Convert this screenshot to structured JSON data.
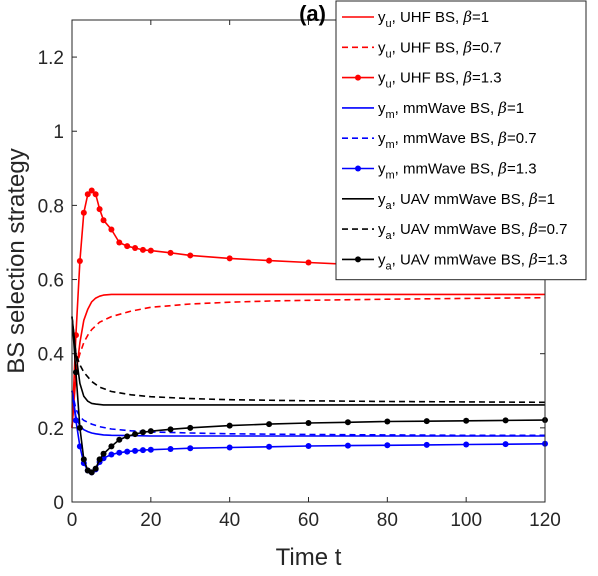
{
  "chart_data": {
    "type": "line",
    "panel_label": "(a)",
    "xlabel": "Time t",
    "ylabel": "BS selection strategy",
    "xlim": [
      0,
      120
    ],
    "ylim": [
      0,
      1.3
    ],
    "xticks": [
      "0",
      "20",
      "40",
      "60",
      "80",
      "100",
      "120"
    ],
    "yticks": [
      "0",
      "0.2",
      "0.4",
      "0.6",
      "0.8",
      "1",
      "1.2"
    ],
    "xtick_values": [
      0,
      20,
      40,
      60,
      80,
      100,
      120
    ],
    "ytick_values": [
      0,
      0.2,
      0.4,
      0.6,
      0.8,
      1.0,
      1.2
    ],
    "legend_position": "top-right",
    "colors": {
      "uhf": "#ff0000",
      "mm": "#0000ff",
      "uav": "#000000"
    },
    "series": [
      {
        "name": "y_u, UHF BS, β=1",
        "legend": {
          "var": "y",
          "sub": "u",
          "desc": ", UHF BS, ",
          "beta": "=1"
        },
        "color": "#ff0000",
        "style": "solid",
        "marker": false,
        "x": [
          0,
          1,
          2,
          3,
          4,
          5,
          6,
          7,
          8,
          10,
          12,
          15,
          20,
          30,
          40,
          60,
          80,
          100,
          120
        ],
        "y": [
          0.2,
          0.34,
          0.43,
          0.49,
          0.52,
          0.54,
          0.55,
          0.555,
          0.558,
          0.56,
          0.56,
          0.56,
          0.56,
          0.56,
          0.56,
          0.56,
          0.56,
          0.56,
          0.56
        ]
      },
      {
        "name": "y_u, UHF BS, β=0.7",
        "legend": {
          "var": "y",
          "sub": "u",
          "desc": ", UHF BS, ",
          "beta": "=0.7"
        },
        "color": "#ff0000",
        "style": "dashed",
        "marker": false,
        "x": [
          0,
          1,
          2,
          3,
          4,
          5,
          7,
          10,
          15,
          20,
          30,
          40,
          50,
          60,
          80,
          100,
          120
        ],
        "y": [
          0.2,
          0.36,
          0.4,
          0.43,
          0.45,
          0.465,
          0.485,
          0.5,
          0.515,
          0.525,
          0.534,
          0.539,
          0.542,
          0.544,
          0.547,
          0.549,
          0.551
        ]
      },
      {
        "name": "y_u, UHF BS, β=1.3",
        "legend": {
          "var": "y",
          "sub": "u",
          "desc": ", UHF BS, ",
          "beta": "=1.3"
        },
        "color": "#ff0000",
        "style": "solid",
        "marker": true,
        "x": [
          0,
          1,
          2,
          3,
          4,
          5,
          6,
          7,
          8,
          10,
          12,
          14,
          16,
          18,
          20,
          25,
          30,
          40,
          50,
          60,
          70,
          80,
          90,
          100,
          110,
          120
        ],
        "y": [
          0.2,
          0.45,
          0.65,
          0.78,
          0.83,
          0.84,
          0.83,
          0.79,
          0.76,
          0.735,
          0.7,
          0.69,
          0.685,
          0.68,
          0.678,
          0.672,
          0.665,
          0.657,
          0.651,
          0.646,
          0.641,
          0.637,
          0.634,
          0.631,
          0.629,
          0.627
        ]
      },
      {
        "name": "y_m, mmWave BS, β=1",
        "legend": {
          "var": "y",
          "sub": "m",
          "desc": ", mmWave BS, ",
          "beta": "=1"
        },
        "color": "#0000ff",
        "style": "solid",
        "marker": false,
        "x": [
          0,
          1,
          2,
          3,
          4,
          5,
          6,
          8,
          10,
          15,
          20,
          40,
          60,
          80,
          100,
          120
        ],
        "y": [
          0.3,
          0.23,
          0.205,
          0.195,
          0.19,
          0.186,
          0.184,
          0.181,
          0.18,
          0.179,
          0.178,
          0.178,
          0.178,
          0.178,
          0.178,
          0.178
        ]
      },
      {
        "name": "y_m, mmWave BS, β=0.7",
        "legend": {
          "var": "y",
          "sub": "m",
          "desc": ", mmWave BS, ",
          "beta": "=0.7"
        },
        "color": "#0000ff",
        "style": "dashed",
        "marker": false,
        "x": [
          0,
          1,
          2,
          3,
          5,
          7,
          10,
          15,
          20,
          30,
          40,
          60,
          80,
          100,
          120
        ],
        "y": [
          0.3,
          0.25,
          0.23,
          0.22,
          0.21,
          0.203,
          0.197,
          0.192,
          0.189,
          0.186,
          0.184,
          0.182,
          0.181,
          0.18,
          0.18
        ]
      },
      {
        "name": "y_m, mmWave BS, β=1.3",
        "legend": {
          "var": "y",
          "sub": "m",
          "desc": ", mmWave BS, ",
          "beta": "=1.3"
        },
        "color": "#0000ff",
        "style": "solid",
        "marker": true,
        "x": [
          0,
          1,
          2,
          3,
          4,
          5,
          6,
          7,
          8,
          10,
          12,
          14,
          16,
          18,
          20,
          25,
          30,
          40,
          50,
          60,
          70,
          80,
          90,
          100,
          110,
          120
        ],
        "y": [
          0.3,
          0.22,
          0.15,
          0.105,
          0.085,
          0.08,
          0.088,
          0.108,
          0.118,
          0.128,
          0.133,
          0.136,
          0.138,
          0.14,
          0.141,
          0.143,
          0.145,
          0.147,
          0.149,
          0.151,
          0.152,
          0.153,
          0.154,
          0.155,
          0.156,
          0.157
        ]
      },
      {
        "name": "y_a, UAV mmWave BS, β=1",
        "legend": {
          "var": "y",
          "sub": "a",
          "desc": ", UAV mmWave BS, ",
          "beta": "=1"
        },
        "color": "#000000",
        "style": "solid",
        "marker": false,
        "x": [
          0,
          1,
          2,
          3,
          4,
          5,
          6,
          8,
          10,
          15,
          20,
          40,
          60,
          80,
          100,
          120
        ],
        "y": [
          0.5,
          0.4,
          0.32,
          0.285,
          0.272,
          0.266,
          0.264,
          0.262,
          0.262,
          0.262,
          0.262,
          0.262,
          0.262,
          0.262,
          0.262,
          0.262
        ]
      },
      {
        "name": "y_a, UAV mmWave BS, β=0.7",
        "legend": {
          "var": "y",
          "sub": "a",
          "desc": ", UAV mmWave BS, ",
          "beta": "=0.7"
        },
        "color": "#000000",
        "style": "dashed",
        "marker": false,
        "x": [
          0,
          1,
          2,
          3,
          5,
          7,
          10,
          15,
          20,
          30,
          40,
          60,
          80,
          100,
          120
        ],
        "y": [
          0.5,
          0.4,
          0.37,
          0.35,
          0.325,
          0.31,
          0.298,
          0.289,
          0.284,
          0.279,
          0.276,
          0.273,
          0.271,
          0.27,
          0.269
        ]
      },
      {
        "name": "y_a, UAV mmWave BS, β=1.3",
        "legend": {
          "var": "y",
          "sub": "a",
          "desc": ", UAV mmWave BS, ",
          "beta": "=1.3"
        },
        "color": "#000000",
        "style": "solid",
        "marker": true,
        "x": [
          0,
          1,
          2,
          3,
          4,
          5,
          6,
          7,
          8,
          10,
          12,
          14,
          16,
          18,
          20,
          25,
          30,
          40,
          50,
          60,
          70,
          80,
          90,
          100,
          110,
          120
        ],
        "y": [
          0.5,
          0.35,
          0.2,
          0.115,
          0.085,
          0.08,
          0.09,
          0.115,
          0.13,
          0.15,
          0.168,
          0.177,
          0.183,
          0.188,
          0.191,
          0.196,
          0.2,
          0.206,
          0.21,
          0.213,
          0.215,
          0.217,
          0.218,
          0.219,
          0.22,
          0.221
        ]
      }
    ]
  }
}
